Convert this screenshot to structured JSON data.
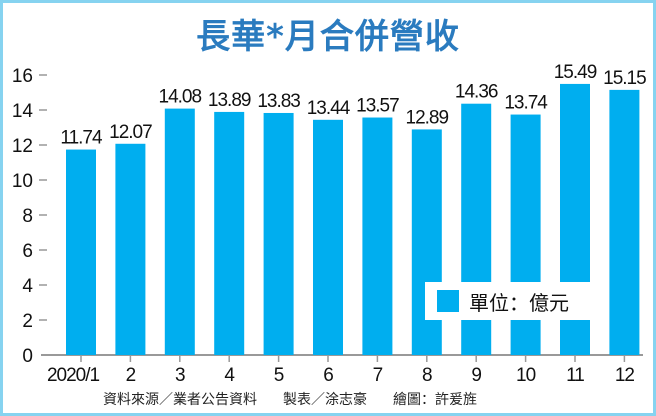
{
  "chart_data": {
    "type": "bar",
    "title": "長華*月合併營收",
    "categories": [
      "2020/1",
      "2",
      "3",
      "4",
      "5",
      "6",
      "7",
      "8",
      "9",
      "10",
      "11",
      "12"
    ],
    "values": [
      11.74,
      12.07,
      14.08,
      13.89,
      13.83,
      13.44,
      13.57,
      12.89,
      14.36,
      13.74,
      15.49,
      15.15
    ],
    "value_labels": [
      "11.74",
      "12.07",
      "14.08",
      "13.89",
      "13.83",
      "13.44",
      "13.57",
      "12.89",
      "14.36",
      "13.74",
      "15.49",
      "15.15"
    ],
    "yticks": [
      0,
      2,
      4,
      6,
      8,
      10,
      12,
      14,
      16
    ],
    "ylim": [
      0,
      16
    ],
    "xlabel": "",
    "ylabel": "",
    "grid": false,
    "legend": {
      "label": "單位：億元",
      "placement": "bottom-right"
    },
    "bar_color": "#00aeef"
  },
  "credits": {
    "source": "資料來源／業者公告資料",
    "table_by": "製表／涂志豪",
    "drawn_by": "繪圖：許爰旌"
  }
}
